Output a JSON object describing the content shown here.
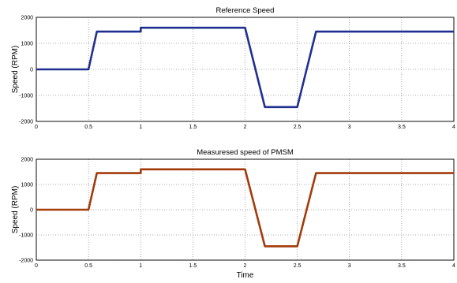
{
  "chart_data": [
    {
      "type": "line",
      "title": "Reference Speed",
      "xlabel": "",
      "ylabel": "Speed (RPM)",
      "xlim": [
        0,
        4
      ],
      "ylim": [
        -2000,
        2000
      ],
      "x_ticks": [
        "0",
        "0.5",
        "1",
        "1.5",
        "2",
        "2.5",
        "3",
        "3.5",
        "4"
      ],
      "y_ticks": [
        "2000",
        "1000",
        "0",
        "-1000",
        "-2000"
      ],
      "grid": true,
      "color": "#1f2f8f",
      "series": [
        {
          "x": [
            0,
            0.5,
            0.58,
            1.0,
            1.0,
            2.0,
            2.19,
            2.5,
            2.68,
            4.0
          ],
          "y": [
            0,
            0,
            1450,
            1450,
            1600,
            1600,
            -1450,
            -1450,
            1450,
            1450
          ]
        }
      ]
    },
    {
      "type": "line",
      "title": "Measuresed speed of PMSM",
      "xlabel": "Time",
      "ylabel": "Speed (RPM)",
      "xlim": [
        0,
        4
      ],
      "ylim": [
        -2000,
        2000
      ],
      "x_ticks": [
        "0",
        "0.5",
        "1",
        "1.5",
        "2",
        "2.5",
        "3",
        "3.5",
        "4"
      ],
      "y_ticks": [
        "2000",
        "1000",
        "0",
        "-1000",
        "-2000"
      ],
      "grid": true,
      "color": "#a33a0a",
      "series": [
        {
          "x": [
            0,
            0.5,
            0.58,
            1.0,
            1.0,
            2.0,
            2.19,
            2.5,
            2.68,
            4.0
          ],
          "y": [
            0,
            0,
            1450,
            1450,
            1600,
            1600,
            -1450,
            -1450,
            1450,
            1450
          ]
        }
      ]
    }
  ]
}
